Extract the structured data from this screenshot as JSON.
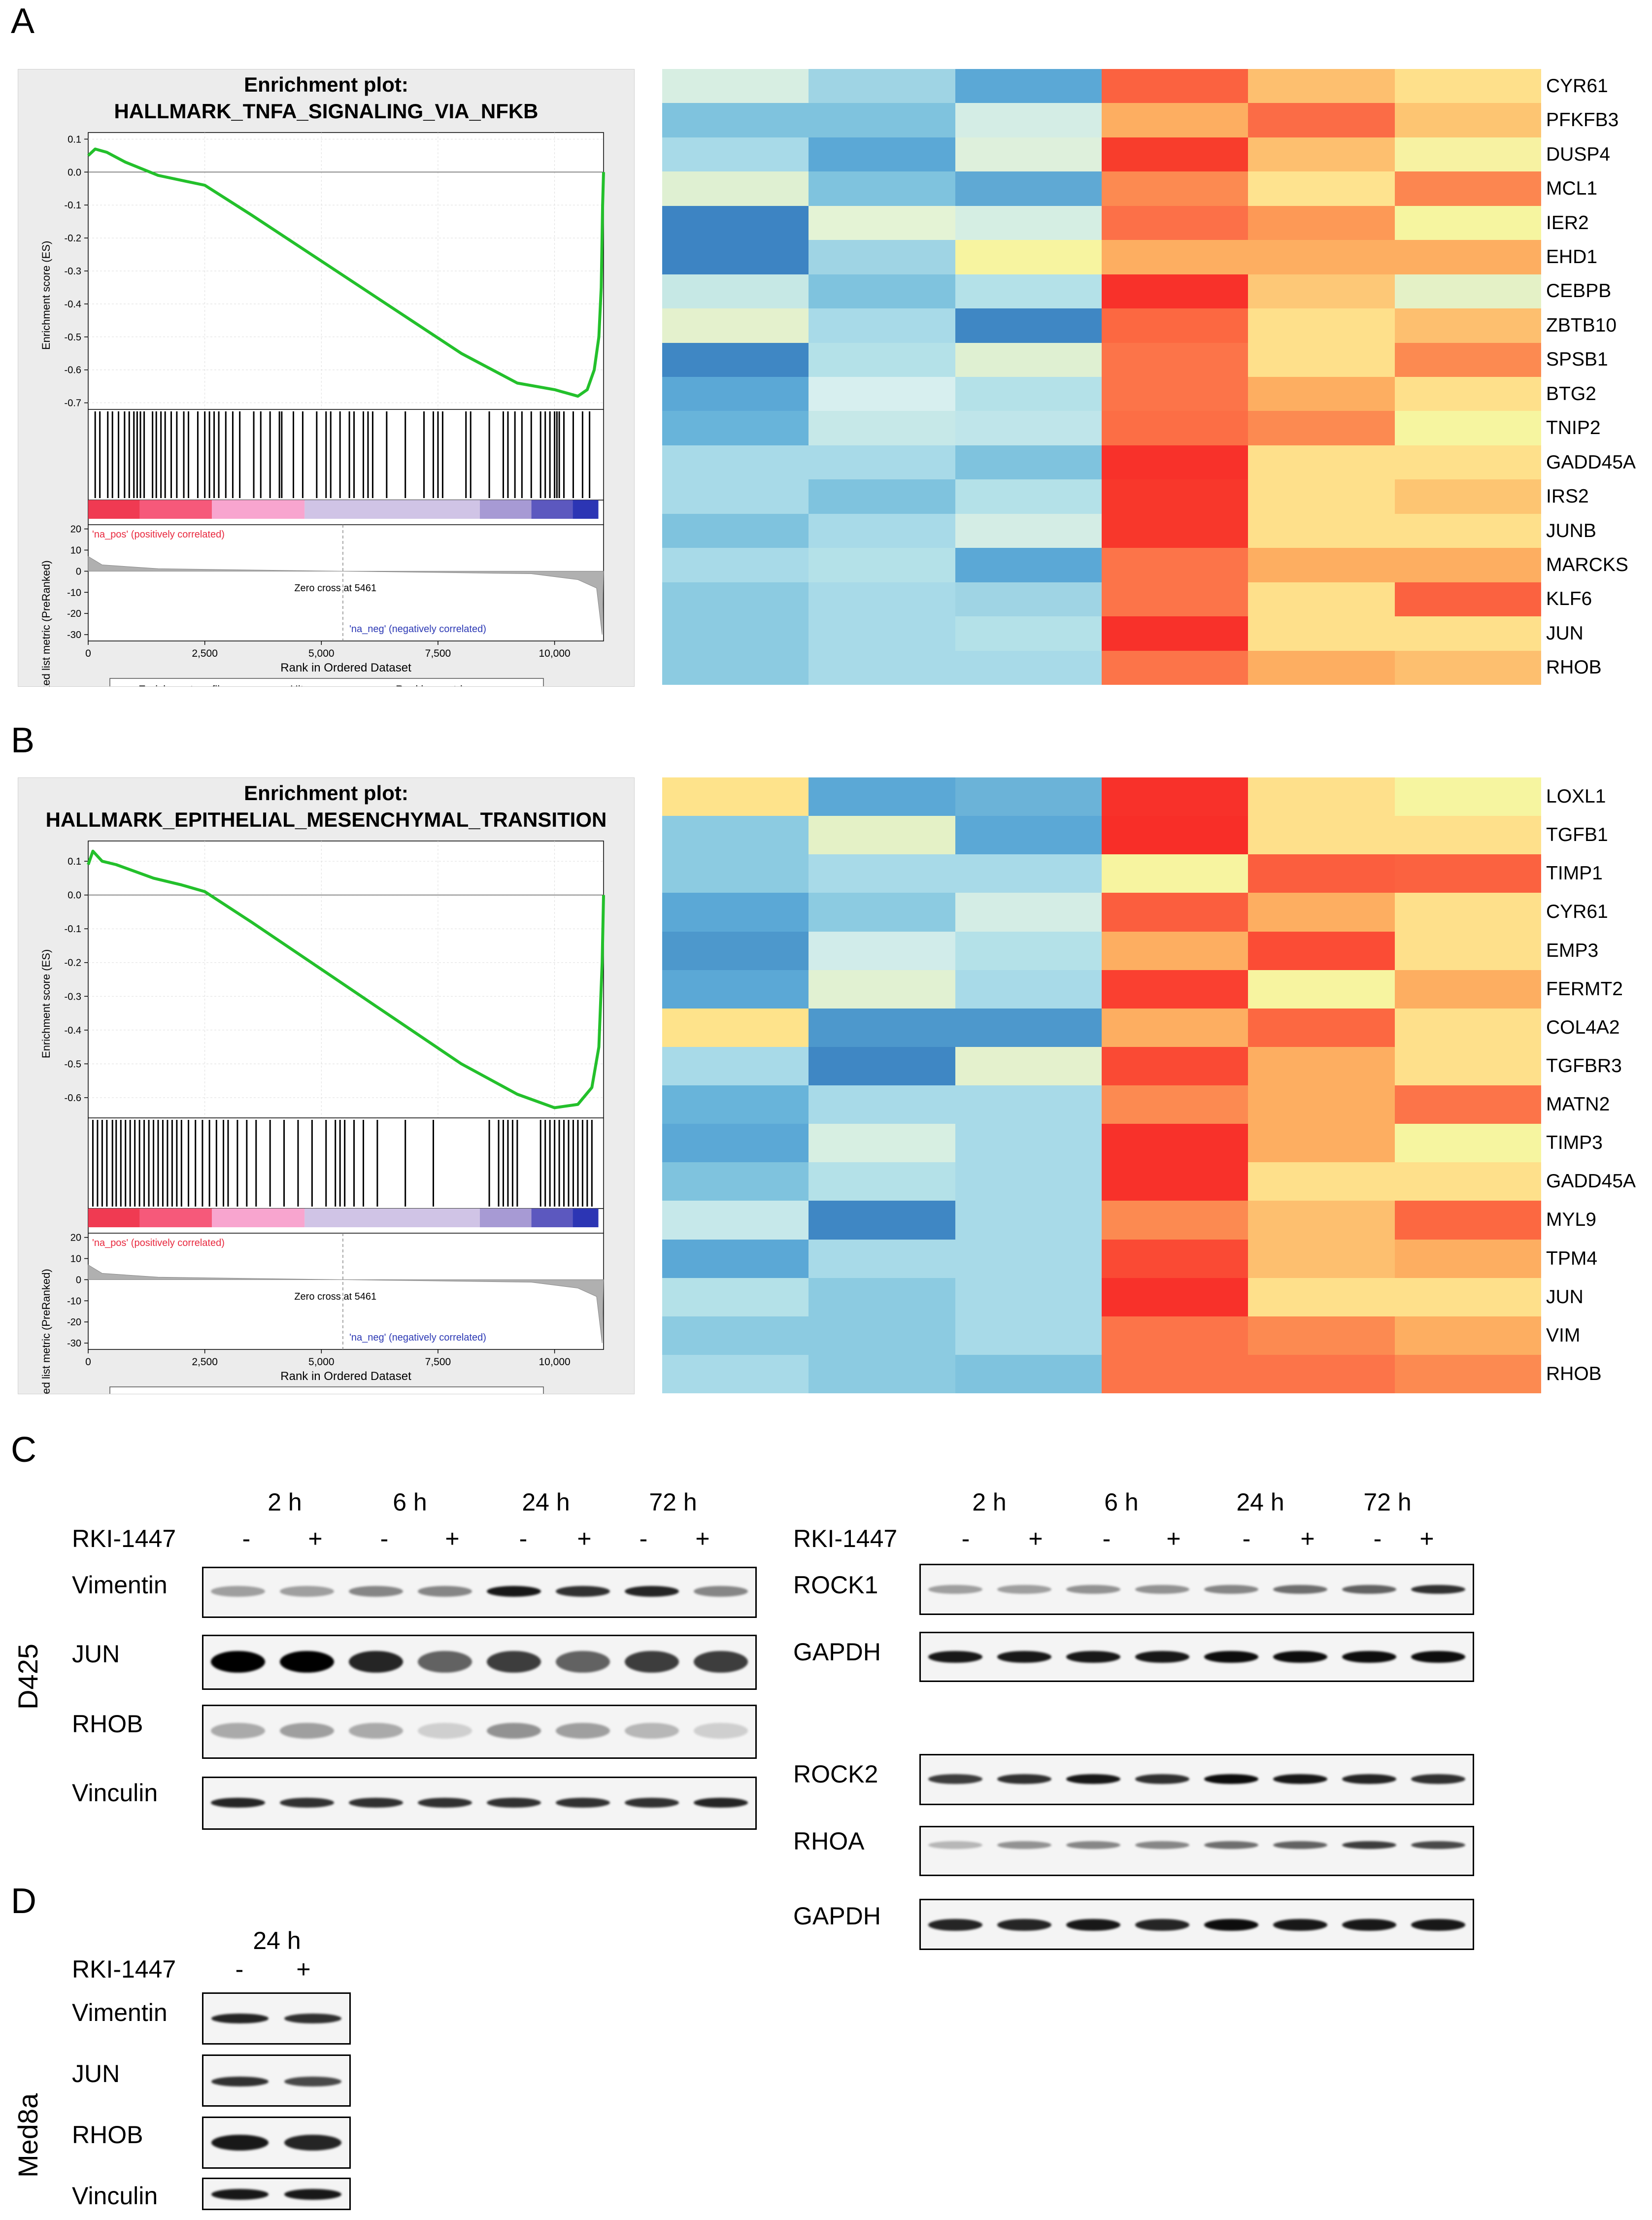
{
  "panels": {
    "A": "A",
    "B": "B",
    "C": "C",
    "D": "D"
  },
  "gsea_common": {
    "y_axis_es": "Enrichment score (ES)",
    "y_axis_rank": "Ranked list metric (PreRanked)",
    "x_axis": "Rank in Ordered Dataset",
    "x_ticks": [
      "0",
      "2,500",
      "5,000",
      "7,500",
      "10,000"
    ],
    "es_ticks_A": [
      "0.1",
      "0.0",
      "-0.1",
      "-0.2",
      "-0.3",
      "-0.4",
      "-0.5",
      "-0.6",
      "-0.7"
    ],
    "es_ticks_B": [
      "0.1",
      "0.0",
      "-0.1",
      "-0.2",
      "-0.3",
      "-0.4",
      "-0.5",
      "-0.6"
    ],
    "rank_ticks": [
      "20",
      "10",
      "0",
      "-10",
      "-20",
      "-30"
    ],
    "na_pos": "'na_pos' (positively correlated)",
    "na_neg": "'na_neg' (negatively correlated)",
    "zero_cross": "Zero cross at 5461",
    "legend": [
      "Enrichment profile",
      "Hits",
      "Ranking metric scores"
    ]
  },
  "gsea_A": {
    "title_line1": "Enrichment plot:",
    "title_line2": "HALLMARK_TNFA_SIGNALING_VIA_NFKB",
    "es_curve": [
      [
        0,
        0.05
      ],
      [
        150,
        0.07
      ],
      [
        400,
        0.06
      ],
      [
        800,
        0.03
      ],
      [
        1500,
        -0.01
      ],
      [
        2500,
        -0.04
      ],
      [
        3500,
        -0.13
      ],
      [
        5000,
        -0.27
      ],
      [
        6500,
        -0.41
      ],
      [
        8000,
        -0.55
      ],
      [
        9200,
        -0.64
      ],
      [
        10000,
        -0.66
      ],
      [
        10500,
        -0.68
      ],
      [
        10700,
        -0.66
      ],
      [
        10850,
        -0.6
      ],
      [
        10950,
        -0.5
      ],
      [
        11000,
        -0.35
      ],
      [
        11030,
        -0.1
      ],
      [
        11050,
        0.0
      ]
    ],
    "hits": [
      150,
      250,
      420,
      520,
      650,
      780,
      880,
      980,
      1050,
      1120,
      1200,
      1380,
      1460,
      1560,
      1650,
      1780,
      1900,
      2050,
      2150,
      2350,
      2500,
      2600,
      2700,
      2800,
      2950,
      3100,
      3250,
      3550,
      3700,
      3900,
      4100,
      4150,
      4400,
      4600,
      4900,
      5100,
      5200,
      5400,
      5600,
      5700,
      5900,
      6000,
      6100,
      6400,
      6800,
      7200,
      7400,
      7500,
      7600,
      8100,
      8200,
      8600,
      8900,
      9000,
      9150,
      9300,
      9500,
      9700,
      9800,
      9900,
      10000,
      10050,
      10100,
      10200,
      10400,
      10600,
      10750
    ]
  },
  "gsea_B": {
    "title_line1": "Enrichment plot:",
    "title_line2": "HALLMARK_EPITHELIAL_MESENCHYMAL_TRANSITION",
    "es_curve": [
      [
        0,
        0.09
      ],
      [
        100,
        0.13
      ],
      [
        300,
        0.1
      ],
      [
        600,
        0.09
      ],
      [
        1000,
        0.07
      ],
      [
        1400,
        0.05
      ],
      [
        2000,
        0.03
      ],
      [
        2500,
        0.01
      ],
      [
        3500,
        -0.08
      ],
      [
        5000,
        -0.22
      ],
      [
        6500,
        -0.36
      ],
      [
        8000,
        -0.5
      ],
      [
        9200,
        -0.59
      ],
      [
        10000,
        -0.63
      ],
      [
        10500,
        -0.62
      ],
      [
        10800,
        -0.57
      ],
      [
        10950,
        -0.45
      ],
      [
        11020,
        -0.2
      ],
      [
        11050,
        0.0
      ]
    ],
    "hits": [
      100,
      200,
      300,
      400,
      520,
      600,
      700,
      800,
      900,
      1000,
      1100,
      1200,
      1300,
      1400,
      1500,
      1600,
      1700,
      1800,
      1900,
      2000,
      2150,
      2300,
      2450,
      2600,
      2750,
      2900,
      3000,
      3200,
      3400,
      3600,
      3900,
      4200,
      4500,
      4800,
      5100,
      5300,
      5400,
      5500,
      5700,
      5900,
      6200,
      6800,
      7400,
      8600,
      8800,
      8900,
      9000,
      9100,
      9200,
      9700,
      9800,
      9900,
      10000,
      10100,
      10200,
      10300,
      10400,
      10500,
      10600,
      10700,
      10800
    ]
  },
  "heatmap_A": {
    "genes": [
      "CYR61",
      "PFKFB3",
      "DUSP4",
      "MCL1",
      "IER2",
      "EHD1",
      "CEBPB",
      "ZBTB10",
      "SPSB1",
      "BTG2",
      "TNIP2",
      "GADD45A",
      "IRS2",
      "JUNB",
      "MARCKS",
      "KLF6",
      "JUN",
      "RHOB"
    ],
    "colors": [
      [
        "#d7eee2",
        "#9fd4e4",
        "#5ba8d6",
        "#fb6240",
        "#fdbf6f",
        "#fee08b"
      ],
      [
        "#7fc3de",
        "#7fc3de",
        "#d4ede5",
        "#fdae61",
        "#fb6c46",
        "#fdc572"
      ],
      [
        "#a8dae8",
        "#5ba8d6",
        "#def0dc",
        "#f83d2c",
        "#fdbf6f",
        "#f7f2a2"
      ],
      [
        "#dff0d2",
        "#7fc3de",
        "#5fa9d4",
        "#fc8a51",
        "#fee38f",
        "#fc8650"
      ],
      [
        "#3d84c3",
        "#e4f3d5",
        "#d5eee3",
        "#fc7048",
        "#fd9956",
        "#f6f5a0"
      ],
      [
        "#3d84c3",
        "#9fd4e4",
        "#f7f4a0",
        "#fdae61",
        "#fdae61",
        "#fdae61"
      ],
      [
        "#c6e8e5",
        "#7fc3de",
        "#b4e1e8",
        "#f8312a",
        "#fdc877",
        "#e4f1c6"
      ],
      [
        "#e4f1cd",
        "#a8dae8",
        "#3f87c4",
        "#fc6841",
        "#fee08b",
        "#fdbf6f"
      ],
      [
        "#3f87c4",
        "#b4e1e8",
        "#dff0d2",
        "#fc7449",
        "#fee08b",
        "#fc8a51"
      ],
      [
        "#5ba8d6",
        "#d7efef",
        "#b4e1e8",
        "#fc7449",
        "#fdae61",
        "#fee08b"
      ],
      [
        "#68b4da",
        "#c6e8e8",
        "#bfe5ea",
        "#fc6e45",
        "#fc8a51",
        "#f6f5a0"
      ],
      [
        "#a8dae8",
        "#a8dae8",
        "#7fc3de",
        "#f8312a",
        "#fee08b",
        "#fee08b"
      ],
      [
        "#a8dae8",
        "#7fc3de",
        "#b4e1e8",
        "#f8372b",
        "#fee08b",
        "#fdc572"
      ],
      [
        "#7fc3de",
        "#a8dae8",
        "#d4ede5",
        "#f8372b",
        "#fee08b",
        "#fee08b"
      ],
      [
        "#a8dae8",
        "#b4e1e8",
        "#5ba8d6",
        "#fc7449",
        "#fdae61",
        "#fdae61"
      ],
      [
        "#8ccbe1",
        "#a8dae8",
        "#9fd4e4",
        "#fc7449",
        "#fee08b",
        "#fb6240"
      ],
      [
        "#8ccbe1",
        "#a8dae8",
        "#b4e1e8",
        "#f8312a",
        "#fee08b",
        "#fee08b"
      ],
      [
        "#8ccbe1",
        "#a8dae8",
        "#a8dae8",
        "#fc7449",
        "#fdae61",
        "#fdbf6f"
      ]
    ]
  },
  "heatmap_B": {
    "genes": [
      "LOXL1",
      "TGFB1",
      "TIMP1",
      "CYR61",
      "EMP3",
      "FERMT2",
      "COL4A2",
      "TGFBR3",
      "MATN2",
      "TIMP3",
      "GADD45A",
      "MYL9",
      "TPM4",
      "JUN",
      "VIM",
      "RHOB"
    ],
    "colors": [
      [
        "#fee38b",
        "#5ba8d6",
        "#6bb3d8",
        "#f8312a",
        "#fee08b",
        "#f6f5a0"
      ],
      [
        "#8ccbe1",
        "#e4f1c6",
        "#5ba8d6",
        "#f82e28",
        "#fee08b",
        "#fee08b"
      ],
      [
        "#8ccbe1",
        "#a8dae8",
        "#a8dae8",
        "#f7f4a0",
        "#fb5e3e",
        "#fb6240"
      ],
      [
        "#5ba8d6",
        "#8ccbe1",
        "#d4ede5",
        "#fb5e3e",
        "#fdae61",
        "#fee08b"
      ],
      [
        "#4d98cc",
        "#d1ecea",
        "#b4e1e8",
        "#fdae61",
        "#fb4c35",
        "#fee08b"
      ],
      [
        "#5ba8d6",
        "#e1f1d2",
        "#a8dae8",
        "#fa4030",
        "#f7f4a0",
        "#fdae61"
      ],
      [
        "#fee38b",
        "#4d98cc",
        "#4d98cc",
        "#fdae61",
        "#fc6841",
        "#fee08b"
      ],
      [
        "#a8dae8",
        "#3f87c4",
        "#e4f1cd",
        "#fa4a34",
        "#fdae61",
        "#fee08b"
      ],
      [
        "#68b4da",
        "#a8dae8",
        "#a8dae8",
        "#fc8a51",
        "#fdae61",
        "#fc7449"
      ],
      [
        "#5ba8d6",
        "#d7efe2",
        "#a8dae8",
        "#f8312a",
        "#fdae61",
        "#f6f5a0"
      ],
      [
        "#7fc3de",
        "#b4e1e8",
        "#a8dae8",
        "#f8312a",
        "#fee08b",
        "#fee08b"
      ],
      [
        "#c6e8ea",
        "#3f87c4",
        "#a8dae8",
        "#fc8a51",
        "#fdbf6f",
        "#fc6841"
      ],
      [
        "#5ba8d6",
        "#a8dae8",
        "#a8dae8",
        "#fa4a34",
        "#fdbf6f",
        "#fdae61"
      ],
      [
        "#b4e1e8",
        "#8ccbe1",
        "#a8dae8",
        "#f8312a",
        "#fee08b",
        "#fee08b"
      ],
      [
        "#8ccbe1",
        "#8ccbe1",
        "#a8dae8",
        "#fc7449",
        "#fc8a51",
        "#fdae61"
      ],
      [
        "#a8dae8",
        "#8ccbe1",
        "#7fc3de",
        "#fc7449",
        "#fc7449",
        "#fc8a51"
      ]
    ]
  },
  "blot_C": {
    "cell_line": "D425",
    "treatment": "RKI-1447",
    "timepoints": [
      "2 h",
      "6 h",
      "24 h",
      "72 h"
    ],
    "signs": [
      "-",
      "+",
      "-",
      "+",
      "-",
      "+",
      "-",
      "+"
    ],
    "left_blots": [
      "Vimentin",
      "JUN",
      "RHOB",
      "Vinculin"
    ],
    "right_blots_1": [
      "ROCK1",
      "GAPDH"
    ],
    "right_blots_2": [
      "ROCK2",
      "RHOA",
      "GAPDH"
    ]
  },
  "blot_D": {
    "cell_line": "Med8a",
    "treatment": "RKI-1447",
    "timepoint": "24 h",
    "signs": [
      "-",
      "+"
    ],
    "blots": [
      "Vimentin",
      "JUN",
      "RHOB",
      "Vinculin"
    ]
  }
}
